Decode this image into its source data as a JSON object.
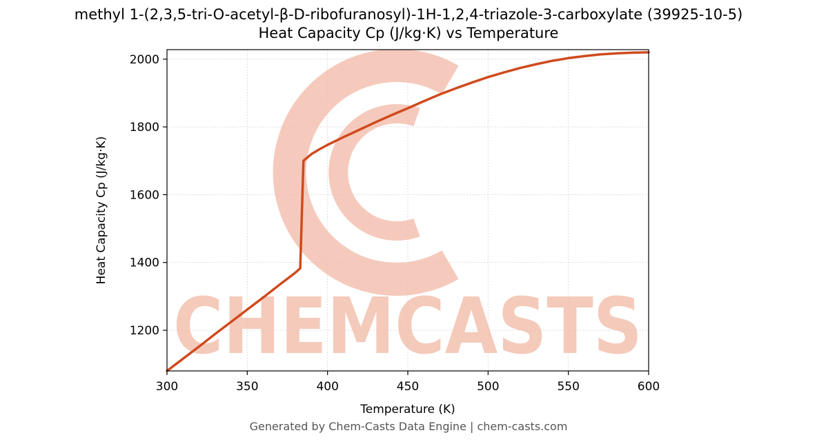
{
  "header": {
    "title_line1": "methyl 1-(2,3,5-tri-O-acetyl-β-D-ribofuranosyl)-1H-1,2,4-triazole-3-carboxylate (39925-10-5)",
    "title_line2": "Heat Capacity Cp (J/kg·K) vs Temperature"
  },
  "footer": {
    "text": "Generated by Chem-Casts Data Engine | chem-casts.com"
  },
  "watermark": {
    "text": "CHEMCASTS",
    "color": "#f2bdab"
  },
  "chart_data": {
    "type": "line",
    "title": "Heat Capacity Cp (J/kg·K) vs Temperature",
    "xlabel": "Temperature (K)",
    "ylabel": "Heat Capacity Cp (J/kg·K)",
    "xlim": [
      300,
      600
    ],
    "ylim": [
      1080,
      2028
    ],
    "xticks": [
      300,
      350,
      400,
      450,
      500,
      550,
      600
    ],
    "yticks": [
      1200,
      1400,
      1600,
      1800,
      2000
    ],
    "grid": true,
    "legend_position": "none",
    "line_color": "#cf4a1d",
    "grid_color": "#c9c9c9",
    "series": [
      {
        "name": "Heat Capacity Cp",
        "x": [
          300,
          310,
          320,
          330,
          340,
          350,
          360,
          370,
          380,
          383,
          385,
          390,
          395,
          400,
          410,
          420,
          430,
          440,
          450,
          460,
          470,
          480,
          490,
          500,
          510,
          520,
          530,
          540,
          550,
          560,
          570,
          580,
          590,
          600
        ],
        "y": [
          1080,
          1116,
          1152,
          1189,
          1225,
          1261,
          1297,
          1334,
          1370,
          1383,
          1700,
          1720,
          1734,
          1747,
          1770,
          1792,
          1814,
          1835,
          1855,
          1876,
          1896,
          1914,
          1931,
          1947,
          1961,
          1974,
          1985,
          1995,
          2003,
          2009,
          2014,
          2017,
          2019,
          2020
        ]
      }
    ]
  }
}
